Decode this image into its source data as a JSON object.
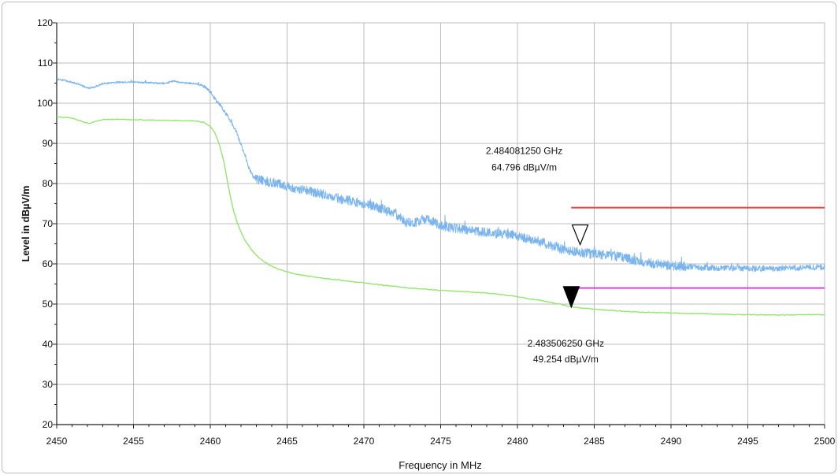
{
  "chart_data": {
    "type": "line",
    "title": "",
    "xlabel": "Frequency in MHz",
    "ylabel": "Level in dBµV/m",
    "xlim": [
      2450,
      2500
    ],
    "ylim": [
      20,
      120
    ],
    "x_ticks": [
      2450,
      2455,
      2460,
      2465,
      2470,
      2475,
      2480,
      2485,
      2490,
      2495,
      2500
    ],
    "y_ticks": [
      120,
      110,
      100,
      90,
      80,
      70,
      60,
      50,
      40,
      30,
      20
    ],
    "grid": true,
    "series": [
      {
        "color": "#79b4ef",
        "points": [
          [
            2450,
            106.0
          ],
          [
            2450.6,
            105.6
          ],
          [
            2451.2,
            105.0
          ],
          [
            2451.8,
            104.1
          ],
          [
            2452.1,
            103.7
          ],
          [
            2452.5,
            104.1
          ],
          [
            2453,
            104.9
          ],
          [
            2454,
            105.2
          ],
          [
            2455,
            105.3
          ],
          [
            2456,
            105.1
          ],
          [
            2457,
            104.9
          ],
          [
            2457.6,
            105.5
          ],
          [
            2458.2,
            105.1
          ],
          [
            2459,
            104.9
          ],
          [
            2459.5,
            104.4
          ],
          [
            2460,
            102.8
          ],
          [
            2460.4,
            100.6
          ],
          [
            2460.8,
            98.6
          ],
          [
            2461.2,
            96.4
          ],
          [
            2461.7,
            92.8
          ],
          [
            2462.1,
            88.6
          ],
          [
            2462.5,
            84.0
          ],
          [
            2462.8,
            81.6
          ],
          [
            2463.2,
            80.9
          ],
          [
            2464,
            80.3
          ],
          [
            2465,
            79.4
          ],
          [
            2466,
            78.4
          ],
          [
            2467,
            77.6
          ],
          [
            2468,
            76.6
          ],
          [
            2469,
            75.8
          ],
          [
            2470,
            74.9
          ],
          [
            2471,
            73.9
          ],
          [
            2472,
            72.4
          ],
          [
            2472.8,
            70.3
          ],
          [
            2473.3,
            70.2
          ],
          [
            2473.8,
            71.1
          ],
          [
            2474.3,
            70.9
          ],
          [
            2475,
            69.6
          ],
          [
            2476,
            68.8
          ],
          [
            2477,
            68.3
          ],
          [
            2478,
            67.8
          ],
          [
            2479,
            67.5
          ],
          [
            2480,
            67.0
          ],
          [
            2481,
            66.1
          ],
          [
            2482,
            64.9
          ],
          [
            2483,
            63.6
          ],
          [
            2484,
            62.9
          ],
          [
            2485,
            62.4
          ],
          [
            2486,
            62.1
          ],
          [
            2487,
            61.6
          ],
          [
            2488,
            60.5
          ],
          [
            2489,
            60.0
          ],
          [
            2490,
            59.6
          ],
          [
            2491,
            59.3
          ],
          [
            2492,
            59.1
          ],
          [
            2494,
            58.9
          ],
          [
            2496,
            58.8
          ],
          [
            2498,
            59.0
          ],
          [
            2500,
            59.2
          ]
        ]
      },
      {
        "color": "#94e56f",
        "points": [
          [
            2450,
            96.6
          ],
          [
            2451,
            96.3
          ],
          [
            2451.6,
            95.5
          ],
          [
            2452.1,
            94.9
          ],
          [
            2452.6,
            95.6
          ],
          [
            2453.2,
            96.0
          ],
          [
            2455,
            95.9
          ],
          [
            2457,
            95.7
          ],
          [
            2459,
            95.6
          ],
          [
            2459.6,
            95.2
          ],
          [
            2460,
            94.2
          ],
          [
            2460.3,
            92.6
          ],
          [
            2460.6,
            89.6
          ],
          [
            2460.9,
            85.2
          ],
          [
            2461.2,
            78.8
          ],
          [
            2461.5,
            73.4
          ],
          [
            2461.8,
            69.8
          ],
          [
            2462.2,
            66.2
          ],
          [
            2462.7,
            63.4
          ],
          [
            2463.2,
            61.4
          ],
          [
            2463.8,
            59.8
          ],
          [
            2464.5,
            58.6
          ],
          [
            2465.5,
            57.5
          ],
          [
            2467,
            56.6
          ],
          [
            2469,
            55.7
          ],
          [
            2471,
            54.8
          ],
          [
            2473,
            54.0
          ],
          [
            2475,
            53.4
          ],
          [
            2477,
            53.0
          ],
          [
            2478.5,
            52.6
          ],
          [
            2480,
            51.8
          ],
          [
            2481.5,
            50.9
          ],
          [
            2483,
            49.8
          ],
          [
            2483.5,
            49.3
          ],
          [
            2484,
            49.1
          ],
          [
            2485,
            48.7
          ],
          [
            2486.5,
            48.3
          ],
          [
            2488,
            48.0
          ],
          [
            2490,
            47.8
          ],
          [
            2492,
            47.6
          ],
          [
            2494,
            47.4
          ],
          [
            2496,
            47.3
          ],
          [
            2498,
            47.3
          ],
          [
            2500,
            47.4
          ]
        ]
      }
    ],
    "limit_lines": [
      {
        "y": 74,
        "x_start": 2483.5,
        "x_end": 2500,
        "color": "#e5413d"
      },
      {
        "y": 54,
        "x_start": 2483.5,
        "x_end": 2500,
        "color": "#e040de"
      }
    ],
    "markers": [
      {
        "x": 2484.08125,
        "y": 64.796,
        "style": "hollow",
        "frequency_label": "2.484081250 GHz",
        "level_label": "64.796 dBµV/m"
      },
      {
        "x": 2483.50625,
        "y": 49.254,
        "style": "filled",
        "frequency_label": "2.483506250 GHz",
        "level_label": "49.254 dBµV/m"
      }
    ]
  }
}
